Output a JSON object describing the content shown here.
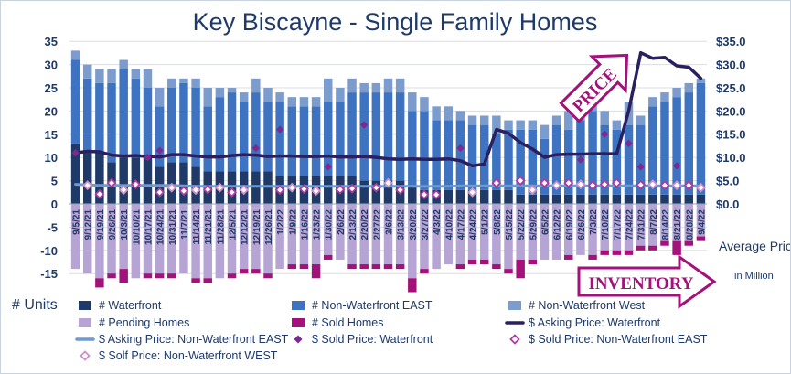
{
  "chart_data": {
    "type": "bar",
    "title": "Key Biscayne - Single Family Homes",
    "ylabel_left": "# Units",
    "ylabel_right": "Average Price",
    "ylabel_right_unit": "in Million",
    "ylim_left": [
      -20,
      35
    ],
    "ylim_right": [
      0,
      35
    ],
    "left_ticks": [
      "35",
      "30",
      "25",
      "20",
      "15",
      "10",
      "5",
      "0",
      "-5",
      "-10",
      "-15"
    ],
    "right_ticks": [
      "$35.0",
      "$30.0",
      "$25.0",
      "$20.0",
      "$15.0",
      "$10.0",
      "$5.0",
      "$0.0"
    ],
    "grid": true,
    "legend_position": "bottom",
    "categories": [
      "9/5/21",
      "9/12/21",
      "9/19/21",
      "9/26/21",
      "10/3/21",
      "10/10/21",
      "10/17/21",
      "10/24/21",
      "10/31/21",
      "11/7/21",
      "11/14/21",
      "11/21/21",
      "11/28/21",
      "12/5/21",
      "12/12/21",
      "12/19/21",
      "12/26/21",
      "1/2/22",
      "1/9/22",
      "1/16/22",
      "1/23/22",
      "1/30/22",
      "2/6/22",
      "2/13/22",
      "2/20/22",
      "2/27/22",
      "3/6/22",
      "3/13/22",
      "3/20/22",
      "3/27/22",
      "4/3/22",
      "4/10/22",
      "4/17/22",
      "4/24/22",
      "5/1/22",
      "5/8/22",
      "5/15/22",
      "5/22/22",
      "5/29/22",
      "6/5/22",
      "6/12/22",
      "6/19/22",
      "6/26/22",
      "7/3/22",
      "7/10/22",
      "7/17/22",
      "7/24/22",
      "7/31/22",
      "8/7/22",
      "8/14/22",
      "8/21/22",
      "8/28/22",
      "9/4/22"
    ],
    "tick_labels": [
      "9/5/21",
      "9/12/21",
      "9/19/21",
      "9/26/21",
      "10/3/21",
      "10/10/21",
      "10/17/21",
      "10/24/21",
      "10/31/21",
      "11/7/21",
      "11/14/21",
      "11/21/21",
      "11/28/21",
      "12/5/21",
      "12/12/21",
      "12/19/21",
      "12/26/21",
      "1/2/22",
      "1/9/22",
      "1/16/22",
      "1/23/22",
      "1/30/22",
      "2/6/22",
      "2/13/22",
      "2/20/22",
      "2/27/22",
      "3/6/22",
      "3/13/22",
      "3/20/22",
      "3/27/22",
      "4/3/22",
      "4/10/22",
      "4/17/22",
      "4/24/22",
      "5/1/22",
      "5/8/22",
      "5/15/22",
      "5/22/22",
      "5/29/22",
      "6/5/22",
      "6/12/22",
      "6/19/22",
      "6/26/22",
      "7/3/22",
      "7/10/22",
      "7/17/22",
      "7/24/22",
      "7/31/22",
      "8/7/22",
      "8/14/22",
      "8/21/22",
      "8/28/22",
      "9/4/22"
    ],
    "series": [
      {
        "name": "# Waterfront",
        "kind": "stack",
        "color": "#1f3a68",
        "values": [
          13,
          11,
          11,
          9,
          10,
          10,
          10,
          8,
          9,
          9,
          8,
          7,
          7,
          7,
          7,
          7,
          7,
          6,
          6,
          6,
          6,
          6,
          6,
          6,
          5,
          5,
          5,
          5,
          4,
          3,
          3,
          3,
          3,
          3,
          3,
          3,
          3,
          2,
          2,
          2,
          2,
          2,
          2,
          2,
          2,
          2,
          2,
          2,
          2,
          2,
          2,
          2,
          2
        ]
      },
      {
        "name": "# Non-Waterfront EAST",
        "kind": "stack",
        "color": "#3d73c1",
        "values": [
          18,
          16,
          15,
          17,
          19,
          17,
          15,
          13,
          16,
          17,
          17,
          14,
          16,
          17,
          15,
          17,
          15,
          16,
          15,
          15,
          15,
          16,
          16,
          18,
          19,
          19,
          19,
          19,
          16,
          17,
          15,
          15,
          15,
          14,
          14,
          12,
          13,
          14,
          14,
          12,
          15,
          14,
          16,
          18,
          15,
          14,
          15,
          15,
          19,
          20,
          21,
          22,
          24
        ]
      },
      {
        "name": "# Non-Waterfront West",
        "kind": "stack",
        "color": "#7b9ccc",
        "values": [
          2,
          3,
          3,
          3,
          2,
          2,
          4,
          4,
          2,
          1,
          2,
          4,
          2,
          1,
          2,
          3,
          3,
          2,
          2,
          2,
          2,
          5,
          3,
          3,
          2,
          2,
          3,
          3,
          4,
          3,
          3,
          3,
          2,
          2,
          2,
          4,
          2,
          2,
          2,
          3,
          2,
          4,
          2,
          2,
          3,
          2,
          5,
          2,
          2,
          2,
          2,
          2,
          1
        ]
      },
      {
        "name": "# Pending Homes",
        "kind": "neg",
        "color": "#b5a4d4",
        "values": [
          -14,
          -15,
          -16,
          -15,
          -14,
          -16,
          -15,
          -15,
          -15,
          -15,
          -16,
          -16,
          -16,
          -15,
          -14,
          -14,
          -15,
          -14,
          -13,
          -13,
          -13,
          -11,
          -12,
          -13,
          -13,
          -13,
          -13,
          -13,
          -16,
          -14,
          -14,
          -13,
          -13,
          -12,
          -12,
          -13,
          -14,
          -12,
          -12,
          -12,
          -12,
          -11,
          -11,
          -11,
          -10,
          -10,
          -10,
          -9,
          -9,
          -8,
          -8,
          -8,
          -7
        ]
      },
      {
        "name": "# Sold Homes",
        "kind": "neg",
        "color": "#a3127a",
        "values": [
          0,
          0,
          -2,
          -1,
          -3,
          0,
          -1,
          -1,
          -1,
          0,
          -1,
          -1,
          0,
          -1,
          -1,
          -1,
          -1,
          0,
          -1,
          -1,
          -3,
          -1,
          0,
          -1,
          -1,
          -1,
          -1,
          -1,
          -3,
          -1,
          0,
          0,
          -1,
          -1,
          -1,
          -1,
          -1,
          -4,
          -1,
          0,
          0,
          -1,
          0,
          -1,
          -1,
          -1,
          -1,
          -1,
          -1,
          -1,
          -3,
          -1,
          -1
        ]
      },
      {
        "name": "$ Asking Price: Waterfront",
        "kind": "line",
        "color": "#2a1f5f",
        "values": [
          11.0,
          11.3,
          11.2,
          10.5,
          10.3,
          10.4,
          10.2,
          10.1,
          10.6,
          10.6,
          10.3,
          10.1,
          10.1,
          10.4,
          10.6,
          10.5,
          10.2,
          10.3,
          10.3,
          10.2,
          10.2,
          10.3,
          10.1,
          10.1,
          10.2,
          10.0,
          9.7,
          9.6,
          9.7,
          9.6,
          9.6,
          9.7,
          9.3,
          8.2,
          8.6,
          16.0,
          15.2,
          13.2,
          11.8,
          10.0,
          10.6,
          10.7,
          10.7,
          10.8,
          10.8,
          10.8,
          20.0,
          32.5,
          31.3,
          31.5,
          29.7,
          29.4,
          27.0
        ]
      },
      {
        "name": "$ Asking Price: Non-Waterfront EAST",
        "kind": "line",
        "color": "#6f9ad0",
        "values": [
          4.2,
          4.1,
          4.0,
          4.0,
          4.0,
          4.0,
          4.0,
          4.0,
          4.0,
          3.9,
          3.8,
          3.8,
          3.8,
          3.8,
          3.8,
          3.8,
          3.8,
          3.8,
          3.8,
          3.8,
          3.8,
          3.8,
          3.8,
          3.8,
          3.8,
          3.8,
          3.8,
          3.8,
          3.8,
          3.8,
          3.8,
          3.8,
          3.9,
          3.9,
          3.9,
          3.9,
          3.9,
          3.9,
          3.9,
          3.9,
          3.9,
          3.9,
          3.9,
          3.9,
          3.9,
          3.9,
          3.9,
          3.9,
          3.9,
          3.9,
          3.9,
          3.9,
          3.9
        ]
      },
      {
        "name": "$ Sold Price: Waterfront",
        "kind": "dot-solid",
        "color": "#7b2a8f",
        "points": [
          [
            0,
            11.0
          ],
          [
            6,
            10.0
          ],
          [
            7,
            11.5
          ],
          [
            15,
            12.0
          ],
          [
            17,
            16.0
          ],
          [
            21,
            8.0
          ],
          [
            24,
            17.0
          ],
          [
            32,
            12.0
          ],
          [
            42,
            9.5
          ],
          [
            44,
            15.0
          ],
          [
            46,
            13.0
          ],
          [
            47,
            8.0
          ],
          [
            50,
            8.2
          ]
        ]
      },
      {
        "name": "$ Sold Price: Non-Waterfront EAST",
        "kind": "dot-open",
        "color": "#b03aa0",
        "points": [
          [
            2,
            2.1
          ],
          [
            3,
            4.5
          ],
          [
            5,
            4.2
          ],
          [
            7,
            2.5
          ],
          [
            9,
            2.8
          ],
          [
            11,
            3.1
          ],
          [
            13,
            2.5
          ],
          [
            17,
            3.0
          ],
          [
            19,
            3.2
          ],
          [
            22,
            3.1
          ],
          [
            23,
            3.3
          ],
          [
            25,
            3.5
          ],
          [
            27,
            3.0
          ],
          [
            29,
            2.0
          ],
          [
            30,
            2.0
          ],
          [
            35,
            4.5
          ],
          [
            37,
            5.0
          ],
          [
            39,
            4.5
          ],
          [
            41,
            4.5
          ],
          [
            43,
            4.0
          ],
          [
            44,
            4.2
          ],
          [
            45,
            4.5
          ],
          [
            47,
            4.1
          ],
          [
            49,
            4.0
          ],
          [
            51,
            4.0
          ]
        ]
      },
      {
        "name": "$ Solf Price: Non-Waterfront WEST",
        "kind": "dot-open",
        "color": "#d090c8",
        "points": [
          [
            1,
            4.0
          ],
          [
            4,
            3.0
          ],
          [
            8,
            3.5
          ],
          [
            10,
            3.0
          ],
          [
            12,
            3.5
          ],
          [
            14,
            3.0
          ],
          [
            18,
            3.5
          ],
          [
            20,
            2.8
          ],
          [
            26,
            4.5
          ],
          [
            33,
            2.5
          ],
          [
            38,
            3.0
          ],
          [
            40,
            4.0
          ],
          [
            42,
            4.2
          ],
          [
            48,
            4.2
          ],
          [
            50,
            4.0
          ],
          [
            52,
            3.5
          ]
        ]
      }
    ],
    "annotations": [
      {
        "text": "PRICE",
        "color": "#a3127a"
      },
      {
        "text": "INVENTORY",
        "color": "#a3127a"
      }
    ]
  }
}
